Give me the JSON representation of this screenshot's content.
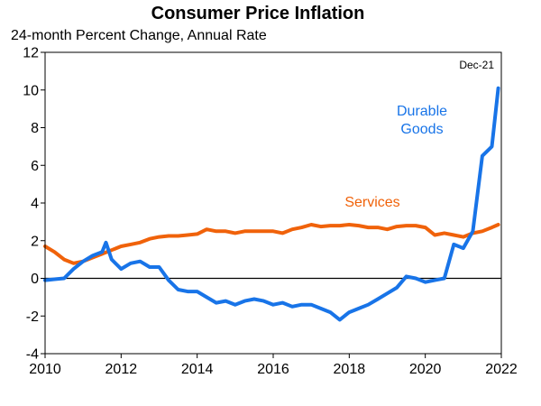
{
  "chart_data": {
    "type": "line",
    "title": "Consumer Price Inflation",
    "subtitle": "24-month Percent Change, Annual Rate",
    "date_note": "Dec-21",
    "xlim": [
      2010,
      2022
    ],
    "ylim": [
      -4,
      12
    ],
    "x_ticks": [
      2010,
      2012,
      2014,
      2016,
      2018,
      2020,
      2022
    ],
    "x_tick_labels": [
      "2010",
      "2012",
      "2014",
      "2016",
      "2018",
      "2020",
      "2022"
    ],
    "y_ticks": [
      -4,
      -2,
      0,
      2,
      4,
      6,
      8,
      10,
      12
    ],
    "y_tick_labels": [
      "-4",
      "-2",
      "0",
      "2",
      "4",
      "6",
      "8",
      "10",
      "12"
    ],
    "zero_line": true,
    "grid": false,
    "series": [
      {
        "name": "Durable Goods",
        "label_lines": [
          "Durable",
          "Goods"
        ],
        "color": "#1874e8",
        "x": [
          2010.0,
          2010.25,
          2010.5,
          2010.75,
          2011.0,
          2011.25,
          2011.5,
          2011.6,
          2011.75,
          2012.0,
          2012.25,
          2012.5,
          2012.75,
          2013.0,
          2013.25,
          2013.5,
          2013.75,
          2014.0,
          2014.25,
          2014.5,
          2014.75,
          2015.0,
          2015.25,
          2015.5,
          2015.75,
          2016.0,
          2016.25,
          2016.5,
          2016.75,
          2017.0,
          2017.25,
          2017.5,
          2017.75,
          2018.0,
          2018.25,
          2018.5,
          2018.75,
          2019.0,
          2019.25,
          2019.5,
          2019.75,
          2020.0,
          2020.25,
          2020.5,
          2020.75,
          2021.0,
          2021.25,
          2021.5,
          2021.75,
          2021.92
        ],
        "y": [
          -0.1,
          -0.05,
          0.0,
          0.5,
          0.9,
          1.2,
          1.4,
          1.9,
          1.0,
          0.5,
          0.8,
          0.9,
          0.6,
          0.6,
          -0.1,
          -0.6,
          -0.7,
          -0.7,
          -1.0,
          -1.3,
          -1.2,
          -1.4,
          -1.2,
          -1.1,
          -1.2,
          -1.4,
          -1.3,
          -1.5,
          -1.4,
          -1.4,
          -1.6,
          -1.8,
          -2.2,
          -1.8,
          -1.6,
          -1.4,
          -1.1,
          -0.8,
          -0.5,
          0.1,
          0.0,
          -0.2,
          -0.1,
          0.0,
          1.8,
          1.6,
          2.5,
          6.5,
          7.0,
          10.1
        ]
      },
      {
        "name": "Services",
        "label_lines": [
          "Services"
        ],
        "color": "#f0620a",
        "x": [
          2010.0,
          2010.25,
          2010.5,
          2010.75,
          2011.0,
          2011.25,
          2011.5,
          2011.75,
          2012.0,
          2012.25,
          2012.5,
          2012.75,
          2013.0,
          2013.25,
          2013.5,
          2013.75,
          2014.0,
          2014.25,
          2014.5,
          2014.75,
          2015.0,
          2015.25,
          2015.5,
          2015.75,
          2016.0,
          2016.25,
          2016.5,
          2016.75,
          2017.0,
          2017.25,
          2017.5,
          2017.75,
          2018.0,
          2018.25,
          2018.5,
          2018.75,
          2019.0,
          2019.25,
          2019.5,
          2019.75,
          2020.0,
          2020.25,
          2020.5,
          2020.75,
          2021.0,
          2021.25,
          2021.5,
          2021.75,
          2021.92
        ],
        "y": [
          1.7,
          1.4,
          1.0,
          0.8,
          0.9,
          1.1,
          1.3,
          1.5,
          1.7,
          1.8,
          1.9,
          2.1,
          2.2,
          2.25,
          2.25,
          2.3,
          2.35,
          2.6,
          2.5,
          2.5,
          2.4,
          2.5,
          2.5,
          2.5,
          2.5,
          2.4,
          2.6,
          2.7,
          2.85,
          2.75,
          2.8,
          2.8,
          2.85,
          2.8,
          2.7,
          2.7,
          2.6,
          2.75,
          2.8,
          2.8,
          2.7,
          2.3,
          2.4,
          2.3,
          2.2,
          2.4,
          2.5,
          2.7,
          2.85
        ]
      }
    ]
  }
}
